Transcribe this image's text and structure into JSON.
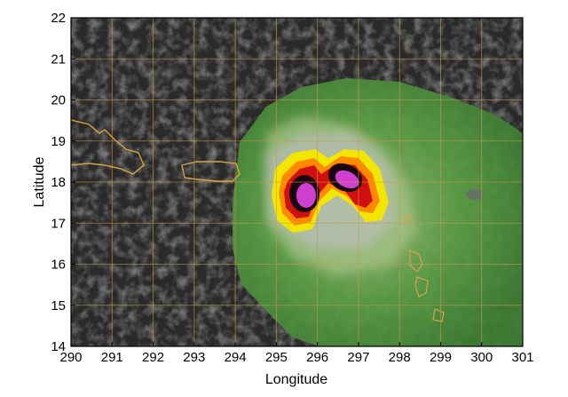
{
  "map": {
    "xlabel": "Longitude",
    "ylabel": "Latitude",
    "x_range": [
      290,
      301
    ],
    "y_range": [
      14,
      22
    ],
    "x_ticks": [
      "290",
      "291",
      "292",
      "293",
      "294",
      "295",
      "296",
      "297",
      "298",
      "299",
      "300",
      "301"
    ],
    "y_ticks": [
      "14",
      "15",
      "16",
      "17",
      "18",
      "19",
      "20",
      "21",
      "22"
    ],
    "grid": true,
    "colors": {
      "background_imagery": "#2a2a2a",
      "grid": "#c89a4a",
      "coastline": "#d9a441",
      "precip_low": "#4a9a3a",
      "precip_mid": "#f2e600",
      "precip_high": "#d01010",
      "precip_peak": "#d040d0"
    },
    "features": [
      {
        "name": "storm-core-west",
        "lon": 295.7,
        "lat": 17.75
      },
      {
        "name": "storm-core-east",
        "lon": 296.6,
        "lat": 18.1
      }
    ]
  }
}
